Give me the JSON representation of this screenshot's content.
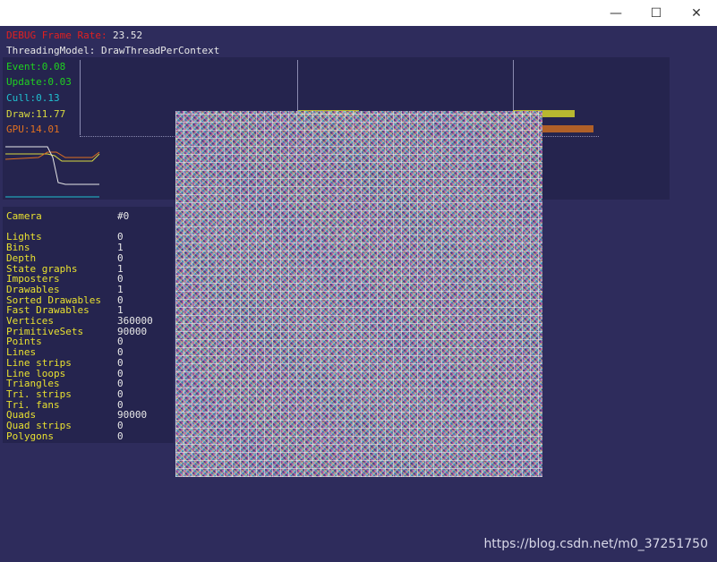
{
  "window": {
    "buttons": {
      "minimize": "—",
      "maximize": "☐",
      "close": "✕"
    }
  },
  "hud": {
    "frame_rate_label": "DEBUG Frame Rate:",
    "frame_rate_value": "23.52",
    "threading_model": "ThreadingModel: DrawThreadPerContext"
  },
  "timing": {
    "event": "Event:0.08",
    "update": "Update:0.03",
    "cull": "Cull:0.13",
    "draw": "Draw:11.77",
    "gpu": "GPU:14.01"
  },
  "colors": {
    "event": "#20d020",
    "update": "#20d020",
    "cull": "#20c0d0",
    "draw": "#d8d840",
    "gpu": "#e07020",
    "background": "#2e2c5c",
    "panel": "#25244e"
  },
  "scene_stats": {
    "rows": [
      {
        "label": "Camera",
        "value": "#0"
      },
      {
        "label": "",
        "value": ""
      },
      {
        "label": "Lights",
        "value": "0"
      },
      {
        "label": "Bins",
        "value": "1"
      },
      {
        "label": "Depth",
        "value": "0"
      },
      {
        "label": "State graphs",
        "value": "1"
      },
      {
        "label": "Imposters",
        "value": "0"
      },
      {
        "label": "Drawables",
        "value": "1"
      },
      {
        "label": "Sorted Drawables",
        "value": "0"
      },
      {
        "label": "Fast Drawables",
        "value": "1"
      },
      {
        "label": "Vertices",
        "value": "360000"
      },
      {
        "label": "PrimitiveSets",
        "value": "90000"
      },
      {
        "label": "Points",
        "value": "0"
      },
      {
        "label": "Lines",
        "value": "0"
      },
      {
        "label": "Line strips",
        "value": "0"
      },
      {
        "label": "Line loops",
        "value": "0"
      },
      {
        "label": "Triangles",
        "value": "0"
      },
      {
        "label": "Tri. strips",
        "value": "0"
      },
      {
        "label": "Tri. fans",
        "value": "0"
      },
      {
        "label": "Quads",
        "value": "90000"
      },
      {
        "label": "Quad strips",
        "value": "0"
      },
      {
        "label": "Polygons",
        "value": "0"
      }
    ]
  },
  "watermark": "https://blog.csdn.net/m0_37251750"
}
